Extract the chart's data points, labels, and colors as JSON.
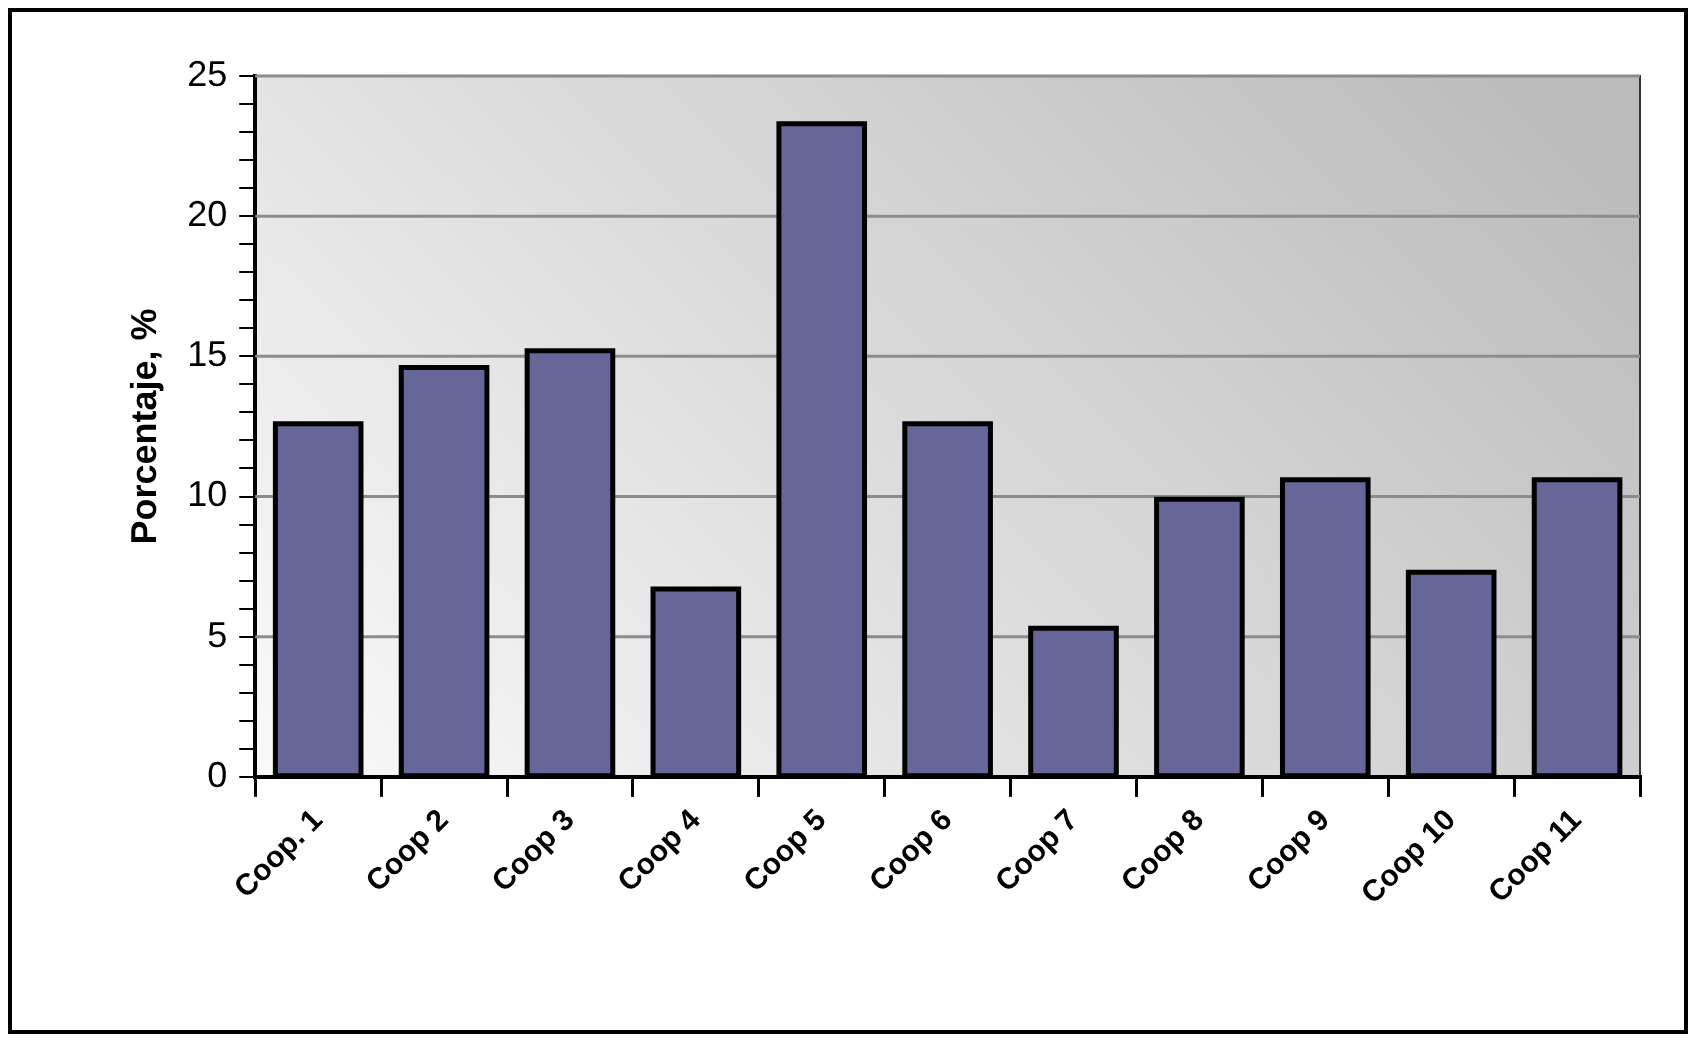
{
  "chart_data": {
    "type": "bar",
    "ylabel": "Porcentaje, %",
    "categories": [
      "Coop. 1",
      "Coop 2",
      "Coop 3",
      "Coop 4",
      "Coop 5",
      "Coop 6",
      "Coop 7",
      "Coop 8",
      "Coop 9",
      "Coop 10",
      "Coop 11"
    ],
    "values": [
      12.6,
      14.6,
      15.2,
      6.7,
      23.3,
      12.6,
      5.3,
      9.9,
      10.6,
      7.3,
      10.6
    ],
    "color": "#666699",
    "ylim": [
      0,
      25
    ],
    "yticks": [
      0,
      {
        "value": 1,
        "label": null
      },
      {
        "value": 2,
        "label": null
      },
      {
        "value": 3,
        "label": null
      },
      {
        "value": 4,
        "label": null
      },
      5,
      {
        "value": 6,
        "label": null
      },
      {
        "value": 7,
        "label": null
      },
      {
        "value": 8,
        "label": null
      },
      {
        "value": 9,
        "label": null
      },
      10,
      {
        "value": 11,
        "label": null
      },
      {
        "value": 12,
        "label": null
      },
      {
        "value": 13,
        "label": null
      },
      {
        "value": 14,
        "label": null
      },
      15,
      {
        "value": 16,
        "label": null
      },
      {
        "value": 17,
        "label": null
      },
      {
        "value": 18,
        "label": null
      },
      {
        "value": 19,
        "label": null
      },
      20,
      {
        "value": 21,
        "label": null
      },
      {
        "value": 22,
        "label": null
      },
      {
        "value": 23,
        "label": null
      },
      {
        "value": 24,
        "label": null
      },
      25
    ],
    "grid": "y",
    "legend": false
  }
}
